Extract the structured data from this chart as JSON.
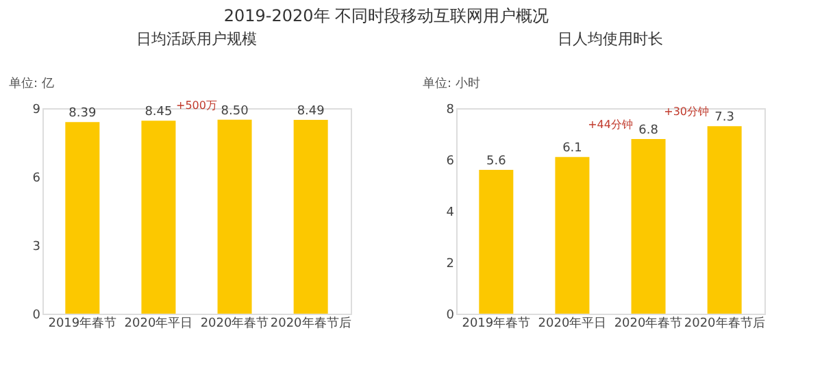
{
  "chart_data": [
    {
      "type": "other",
      "title": "2019-2020年 不同时段移动互联网用户概况"
    },
    {
      "type": "bar",
      "title": "日均活跃用户规模",
      "ylabel": "单位: 亿",
      "categories": [
        "2019年春节",
        "2020年平日",
        "2020年春节",
        "2020年春节后"
      ],
      "values": [
        8.39,
        8.45,
        8.5,
        8.49
      ],
      "value_labels": [
        "8.39",
        "8.45",
        "8.50",
        "8.49"
      ],
      "color": "#fcc800",
      "ylim": [
        0,
        9
      ],
      "yticks": [
        0,
        3,
        6,
        9
      ],
      "grid": false,
      "annotations": [
        "+500万"
      ]
    },
    {
      "type": "bar",
      "title": "日人均使用时长",
      "ylabel": "单位: 小时",
      "categories": [
        "2019年春节",
        "2020年平日",
        "2020年春节",
        "2020年春节后"
      ],
      "values": [
        5.6,
        6.1,
        6.8,
        7.3
      ],
      "data_labels": true,
      "color": "#fcc800",
      "ylim": [
        0,
        8
      ],
      "yticks": [
        0,
        2,
        4,
        6,
        8
      ],
      "grid": false,
      "annotations": [
        "+44分钟",
        "+30分钟"
      ]
    }
  ]
}
